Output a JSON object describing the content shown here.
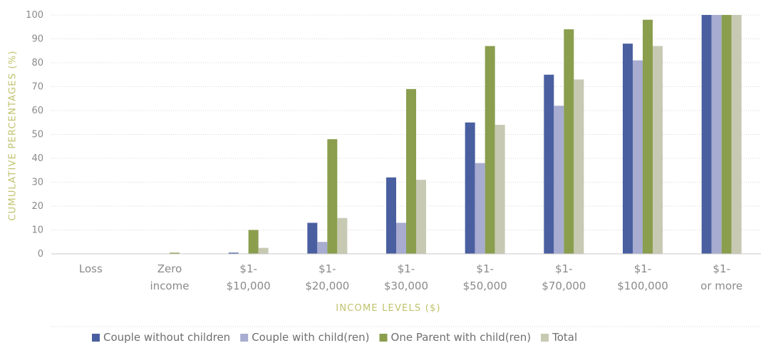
{
  "chart_data": {
    "type": "bar",
    "title": "",
    "ylabel": "CUMULATIVE PERCENTAGES (%)",
    "xlabel": "INCOME LEVELS ($)",
    "ylim": [
      0,
      100
    ],
    "yticks": [
      0,
      10,
      20,
      30,
      40,
      50,
      60,
      70,
      80,
      90,
      100
    ],
    "grid": true,
    "legend_position": "bottom",
    "categories": [
      {
        "line1": "Loss",
        "line2": ""
      },
      {
        "line1": "Zero",
        "line2": "income"
      },
      {
        "line1": "$1-",
        "line2": "$10,000"
      },
      {
        "line1": "$1-",
        "line2": "$20,000"
      },
      {
        "line1": "$1-",
        "line2": "$30,000"
      },
      {
        "line1": "$1-",
        "line2": "$50,000"
      },
      {
        "line1": "$1-",
        "line2": "$70,000"
      },
      {
        "line1": "$1-",
        "line2": "$100,000"
      },
      {
        "line1": "$1-",
        "line2": "or more"
      }
    ],
    "series": [
      {
        "name": "Couple without children",
        "color": "#4a5fa0",
        "values": [
          0,
          0,
          0.5,
          13,
          32,
          55,
          75,
          88,
          100
        ]
      },
      {
        "name": "Couple with child(ren)",
        "color": "#a7acd0",
        "values": [
          0,
          0,
          0,
          5,
          13,
          38,
          62,
          81,
          100
        ]
      },
      {
        "name": "One Parent with child(ren)",
        "color": "#8a9e4e",
        "values": [
          0,
          0.5,
          10,
          48,
          69,
          87,
          94,
          98,
          100
        ]
      },
      {
        "name": "Total",
        "color": "#c7c9b3",
        "values": [
          0,
          0,
          2.5,
          15,
          31,
          54,
          73,
          87,
          100
        ]
      }
    ]
  }
}
